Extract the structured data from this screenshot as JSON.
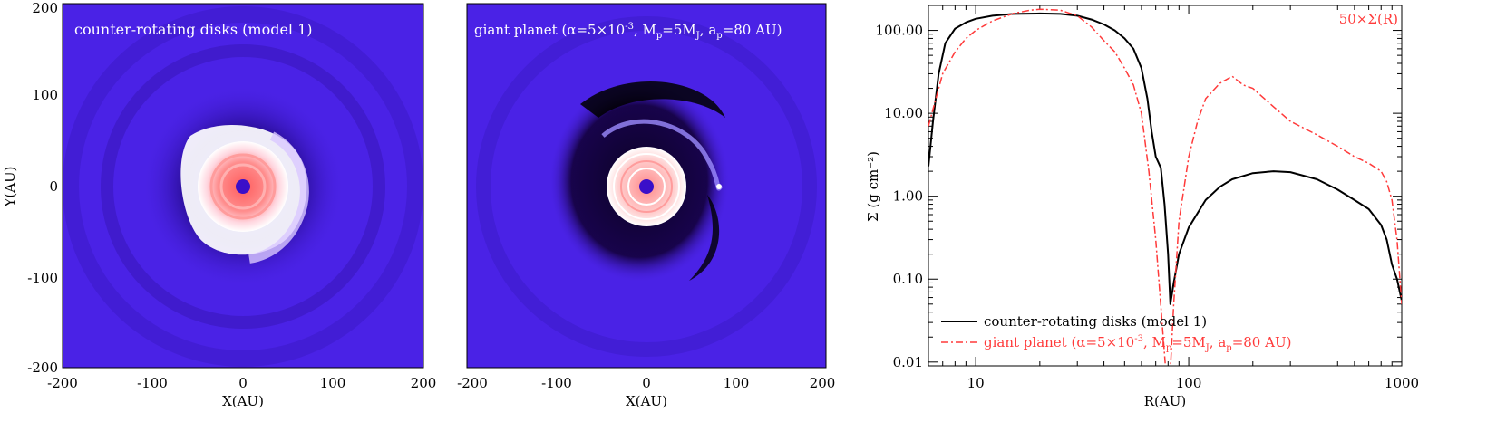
{
  "panels": {
    "left": {
      "title": "counter-rotating disks (model 1)",
      "xlabel": "X(AU)",
      "ylabel": "Y(AU)",
      "x_ticks": [
        "-200",
        "-100",
        "0",
        "100",
        "200"
      ],
      "y_ticks": [
        "200",
        "100",
        "0",
        "-100",
        "-200"
      ]
    },
    "middle": {
      "title": {
        "t1": "giant planet (α=5×10",
        "exp": "-3",
        "t2": ", M",
        "sub1": "p",
        "t3": "=5M",
        "sub2": "J",
        "t4": ", a",
        "sub3": "p",
        "t5": "=80 AU)"
      },
      "xlabel": "X(AU)",
      "x_ticks": [
        "-200",
        "-100",
        "0",
        "100",
        "200"
      ]
    }
  },
  "colors": {
    "map_background": "#4a22e6",
    "hot_center": "#ff6b6b",
    "black_series": "#000000",
    "red_series": "#ff3a3a"
  },
  "chart_data": {
    "type": "line",
    "xscale": "log",
    "yscale": "log",
    "xlim": [
      6,
      1000
    ],
    "ylim": [
      0.009,
      200
    ],
    "xlabel": "R(AU)",
    "ylabel": "Σ (g cm⁻²)",
    "x_ticks": [
      "10",
      "100",
      "1000"
    ],
    "y_ticks": [
      "100.00",
      "10.00",
      "1.00",
      "0.10",
      "0.01"
    ],
    "annotation": "50×Σ(R)",
    "legend_position": "bottom-left",
    "series": [
      {
        "name": "counter-rotating disks (model 1)",
        "color": "#000000",
        "style": "solid",
        "points": [
          [
            6,
            2.3
          ],
          [
            6.3,
            8
          ],
          [
            6.7,
            30
          ],
          [
            7.2,
            70
          ],
          [
            8,
            105
          ],
          [
            9,
            125
          ],
          [
            10,
            138
          ],
          [
            12,
            150
          ],
          [
            15,
            158
          ],
          [
            20,
            160
          ],
          [
            25,
            158
          ],
          [
            30,
            150
          ],
          [
            35,
            135
          ],
          [
            40,
            118
          ],
          [
            45,
            100
          ],
          [
            50,
            80
          ],
          [
            55,
            60
          ],
          [
            60,
            35
          ],
          [
            64,
            15
          ],
          [
            67,
            6
          ],
          [
            70,
            3
          ],
          [
            74,
            2.2
          ],
          [
            77,
            0.8
          ],
          [
            80,
            0.2
          ],
          [
            82,
            0.05
          ],
          [
            85,
            0.09
          ],
          [
            90,
            0.2
          ],
          [
            100,
            0.42
          ],
          [
            120,
            0.9
          ],
          [
            140,
            1.3
          ],
          [
            160,
            1.6
          ],
          [
            200,
            1.9
          ],
          [
            250,
            2.0
          ],
          [
            300,
            1.95
          ],
          [
            400,
            1.6
          ],
          [
            500,
            1.2
          ],
          [
            600,
            0.9
          ],
          [
            700,
            0.7
          ],
          [
            800,
            0.45
          ],
          [
            850,
            0.3
          ],
          [
            900,
            0.15
          ],
          [
            950,
            0.1
          ],
          [
            1000,
            0.055
          ]
        ]
      },
      {
        "name": "giant planet (α=5×10⁻³, Mp=5MJ, ap=80 AU)",
        "color": "#ff3a3a",
        "style": "dashdot",
        "points": [
          [
            6,
            7
          ],
          [
            6.5,
            15
          ],
          [
            7,
            30
          ],
          [
            8,
            55
          ],
          [
            9,
            80
          ],
          [
            10,
            100
          ],
          [
            12,
            130
          ],
          [
            15,
            160
          ],
          [
            18,
            175
          ],
          [
            20,
            180
          ],
          [
            25,
            175
          ],
          [
            30,
            150
          ],
          [
            35,
            110
          ],
          [
            40,
            75
          ],
          [
            45,
            55
          ],
          [
            50,
            35
          ],
          [
            55,
            22
          ],
          [
            60,
            10
          ],
          [
            65,
            2
          ],
          [
            70,
            0.3
          ],
          [
            75,
            0.03
          ],
          [
            78,
            0.008
          ],
          [
            82,
            0.008
          ],
          [
            85,
            0.05
          ],
          [
            90,
            0.5
          ],
          [
            100,
            3
          ],
          [
            110,
            8
          ],
          [
            120,
            15
          ],
          [
            140,
            23
          ],
          [
            160,
            28
          ],
          [
            180,
            22
          ],
          [
            200,
            20
          ],
          [
            250,
            12
          ],
          [
            300,
            8
          ],
          [
            400,
            5.5
          ],
          [
            500,
            4
          ],
          [
            600,
            3
          ],
          [
            700,
            2.5
          ],
          [
            800,
            2.0
          ],
          [
            850,
            1.5
          ],
          [
            900,
            0.9
          ],
          [
            950,
            0.3
          ],
          [
            1000,
            0.05
          ]
        ]
      }
    ]
  }
}
